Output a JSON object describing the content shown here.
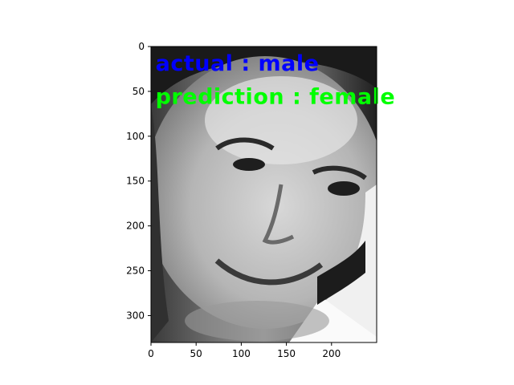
{
  "chart_data": {
    "type": "image",
    "image_width": 250,
    "image_height": 330,
    "xlim": [
      0,
      250
    ],
    "ylim": [
      330,
      0
    ],
    "x_ticks": [
      0,
      50,
      100,
      150,
      200
    ],
    "y_ticks": [
      0,
      50,
      100,
      150,
      200,
      250,
      300
    ],
    "grid": false,
    "annotations": [
      {
        "text": "actual : male",
        "color": "#0000ff",
        "x": 5,
        "y": 18
      },
      {
        "text": "prediction : female",
        "color": "#00ff00",
        "x": 5,
        "y": 55
      }
    ]
  }
}
